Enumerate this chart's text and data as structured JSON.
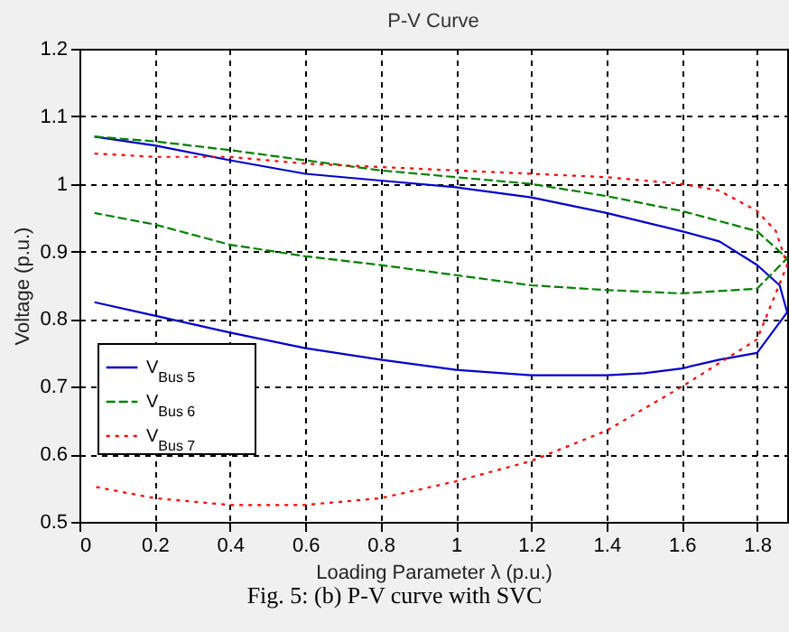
{
  "chart_data": {
    "type": "line",
    "title": "P-V Curve",
    "xlabel": "Loading Parameter λ (p.u.)",
    "ylabel": "Voltage (p.u.)",
    "xlim": [
      0,
      1.88
    ],
    "ylim": [
      0.5,
      1.2
    ],
    "xticks": [
      0,
      0.2,
      0.4,
      0.6,
      0.8,
      1,
      1.2,
      1.4,
      1.6,
      1.8
    ],
    "yticks": [
      0.5,
      0.6,
      0.7,
      0.8,
      0.9,
      1,
      1.1,
      1.2
    ],
    "grid": true,
    "legend": "bottom left",
    "marker": "none",
    "annotations": [
      "Fig. 5: (b) P-V curve with SVC"
    ],
    "series": [
      {
        "name": "V$_{Bus 5}$",
        "color": "#0000cc",
        "line_style": "solid",
        "x": [
          0.04,
          0.2,
          0.4,
          0.6,
          0.8,
          1.0,
          1.2,
          1.4,
          1.6,
          1.7,
          1.8,
          1.86,
          1.88,
          1.8,
          1.7,
          1.6,
          1.5,
          1.4,
          1.2,
          1.0,
          0.8,
          0.6,
          0.4,
          0.2,
          0.04
        ],
        "values": [
          1.07,
          1.057,
          1.035,
          1.015,
          1.005,
          0.995,
          0.98,
          0.957,
          0.93,
          0.915,
          0.88,
          0.85,
          0.81,
          0.75,
          0.74,
          0.727,
          0.72,
          0.717,
          0.717,
          0.725,
          0.74,
          0.757,
          0.78,
          0.805,
          0.825
        ]
      },
      {
        "name": "V$_{Bus 6}$",
        "color": "#008000",
        "line_style": "dashed",
        "x": [
          0.04,
          0.2,
          0.4,
          0.6,
          0.8,
          1.0,
          1.2,
          1.4,
          1.6,
          1.8,
          1.88,
          1.8,
          1.6,
          1.4,
          1.2,
          1.0,
          0.8,
          0.6,
          0.4,
          0.2,
          0.04
        ],
        "values": [
          1.07,
          1.063,
          1.05,
          1.035,
          1.02,
          1.01,
          1.0,
          0.982,
          0.96,
          0.93,
          0.89,
          0.845,
          0.838,
          0.843,
          0.85,
          0.865,
          0.88,
          0.893,
          0.91,
          0.94,
          0.957
        ]
      },
      {
        "name": "V$_{Bus 7}$",
        "color": "#ff0000",
        "line_style": "dotted",
        "x": [
          0.04,
          0.2,
          0.4,
          0.6,
          0.8,
          1.0,
          1.2,
          1.4,
          1.6,
          1.7,
          1.8,
          1.85,
          1.88,
          1.8,
          1.7,
          1.6,
          1.4,
          1.2,
          1.0,
          0.8,
          0.6,
          0.4,
          0.2,
          0.04
        ],
        "values": [
          1.045,
          1.04,
          1.04,
          1.03,
          1.025,
          1.02,
          1.015,
          1.01,
          1.0,
          0.99,
          0.96,
          0.93,
          0.88,
          0.77,
          0.735,
          0.7,
          0.635,
          0.59,
          0.56,
          0.535,
          0.525,
          0.525,
          0.535,
          0.552
        ]
      }
    ]
  }
}
